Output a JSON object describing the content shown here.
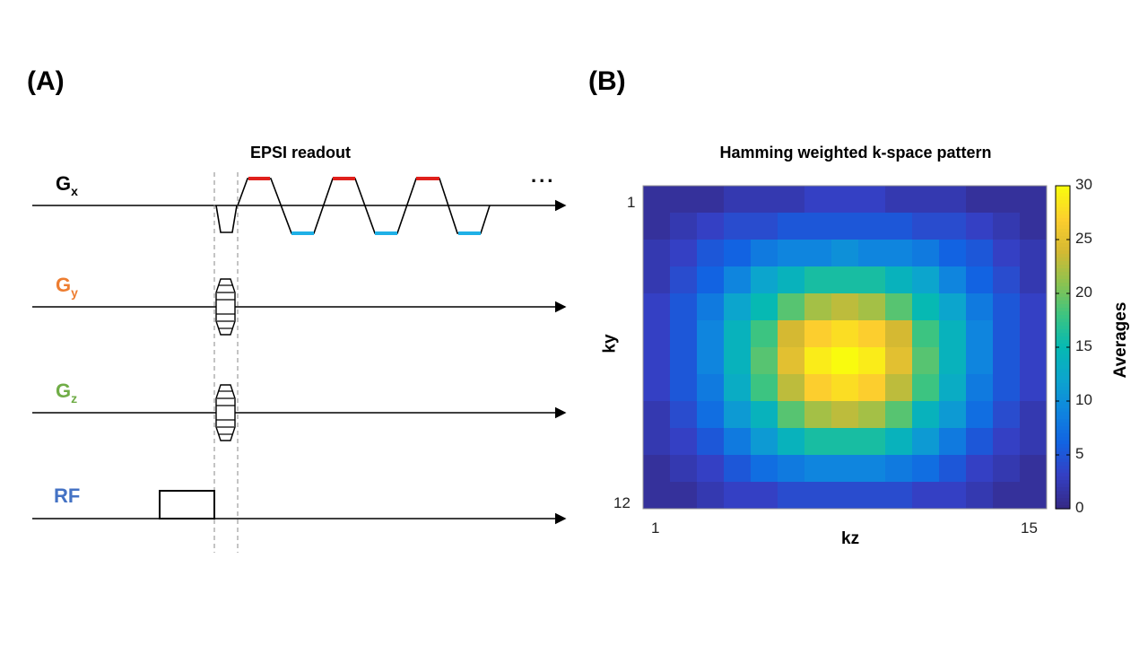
{
  "panel_a": {
    "label": "(A)",
    "readout_title": "EPSI readout",
    "ellipsis": "...",
    "channels": [
      {
        "main": "G",
        "sub": "x",
        "color": "#000000"
      },
      {
        "main": "G",
        "sub": "y",
        "color": "#ed7d31"
      },
      {
        "main": "G",
        "sub": "z",
        "color": "#70ad47"
      },
      {
        "main": "RF",
        "sub": "",
        "color": "#4472c4"
      }
    ],
    "colors": {
      "positive_plateau": "#e0201c",
      "negative_plateau": "#1fb0e6"
    }
  },
  "panel_b": {
    "label": "(B)",
    "title": "Hamming weighted k-space pattern",
    "x_label": "kz",
    "y_label": "ky",
    "x_tick_left": "1",
    "x_tick_right": "15",
    "y_tick_top": "1",
    "y_tick_bottom": "12",
    "colorbar_label": "Averages",
    "colorbar_ticks": [
      "30",
      "25",
      "20",
      "15",
      "10",
      "5",
      "0"
    ]
  },
  "chart_data": {
    "type": "heatmap",
    "title": "Hamming weighted k-space pattern",
    "xlabel": "kz",
    "ylabel": "ky",
    "x_range": [
      1,
      15
    ],
    "y_range": [
      1,
      12
    ],
    "colorbar_label": "Averages",
    "colorbar_range": [
      0,
      30
    ],
    "colormap": "parula",
    "values": [
      [
        1,
        1,
        1,
        2,
        2,
        2,
        3,
        3,
        3,
        2,
        2,
        2,
        1,
        1,
        1
      ],
      [
        1,
        2,
        3,
        4,
        4,
        5,
        5,
        5,
        5,
        5,
        4,
        4,
        3,
        2,
        1
      ],
      [
        2,
        3,
        5,
        6,
        8,
        9,
        9,
        10,
        9,
        9,
        8,
        6,
        5,
        3,
        2
      ],
      [
        2,
        4,
        6,
        9,
        12,
        14,
        16,
        16,
        16,
        14,
        12,
        9,
        6,
        4,
        2
      ],
      [
        3,
        5,
        8,
        12,
        15,
        19,
        22,
        23,
        22,
        19,
        15,
        12,
        8,
        5,
        3
      ],
      [
        3,
        5,
        9,
        14,
        18,
        24,
        27,
        28,
        27,
        24,
        18,
        14,
        9,
        5,
        3
      ],
      [
        3,
        5,
        9,
        14,
        19,
        25,
        29,
        30,
        29,
        25,
        19,
        14,
        9,
        5,
        3
      ],
      [
        3,
        5,
        8,
        13,
        18,
        23,
        27,
        28,
        27,
        23,
        18,
        13,
        8,
        5,
        3
      ],
      [
        2,
        4,
        7,
        11,
        14,
        19,
        22,
        23,
        22,
        19,
        14,
        11,
        7,
        4,
        2
      ],
      [
        2,
        3,
        5,
        8,
        11,
        14,
        16,
        16,
        16,
        14,
        11,
        8,
        5,
        3,
        2
      ],
      [
        1,
        2,
        3,
        5,
        7,
        8,
        9,
        9,
        9,
        8,
        7,
        5,
        3,
        2,
        1
      ],
      [
        1,
        1,
        2,
        3,
        3,
        4,
        4,
        4,
        4,
        4,
        3,
        3,
        2,
        1,
        1
      ]
    ]
  }
}
